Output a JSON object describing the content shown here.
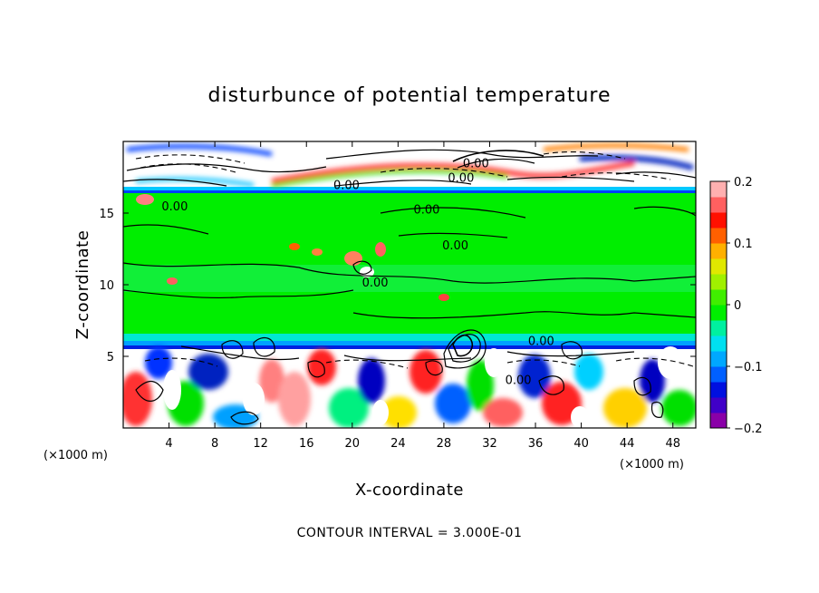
{
  "chart_data": {
    "type": "heatmap",
    "title": "disturbunce of potential temperature",
    "xlabel": "X-coordinate",
    "ylabel": "Z-coordinate",
    "x_unit": "(×1000 m)",
    "z_unit": "(×1000 m)",
    "xlim": [
      0,
      50
    ],
    "ylim": [
      0,
      20
    ],
    "x_ticks": [
      4,
      8,
      12,
      16,
      20,
      24,
      28,
      32,
      36,
      40,
      44,
      48
    ],
    "y_ticks": [
      5,
      10,
      15
    ],
    "colorbar": {
      "range": [
        -0.2,
        0.2
      ],
      "tick_values": [
        0.2,
        0.1,
        0,
        -0.1,
        -0.2
      ],
      "tick_labels": [
        "0.2",
        "0.1",
        "0",
        "−0.1",
        "−0.2"
      ],
      "colors": [
        "#8a00a8",
        "#4000c8",
        "#0010e0",
        "#0060ff",
        "#00a8ff",
        "#00e0f0",
        "#00f0a0",
        "#00ee00",
        "#40ee00",
        "#a0f000",
        "#e0e800",
        "#ffb000",
        "#ff6000",
        "#ff1000",
        "#ff6060",
        "#ffb0b0"
      ]
    },
    "contour_labels": [
      {
        "text": "0.00",
        "x": 4.5,
        "z": 15.5
      },
      {
        "text": "0.00",
        "x": 19.5,
        "z": 17.0
      },
      {
        "text": "0.00",
        "x": 29.5,
        "z": 17.5
      },
      {
        "text": "0.00",
        "x": 30.8,
        "z": 18.5
      },
      {
        "text": "0.00",
        "x": 26.5,
        "z": 15.3
      },
      {
        "text": "0.00",
        "x": 29.0,
        "z": 12.8
      },
      {
        "text": "0.00",
        "x": 22.0,
        "z": 10.2
      },
      {
        "text": "0.00",
        "x": 36.5,
        "z": 6.1
      },
      {
        "text": "0.00",
        "x": 34.5,
        "z": 3.4
      }
    ],
    "contour_interval_text": "CONTOUR INTERVAL = 3.000E-01",
    "grid": false
  }
}
